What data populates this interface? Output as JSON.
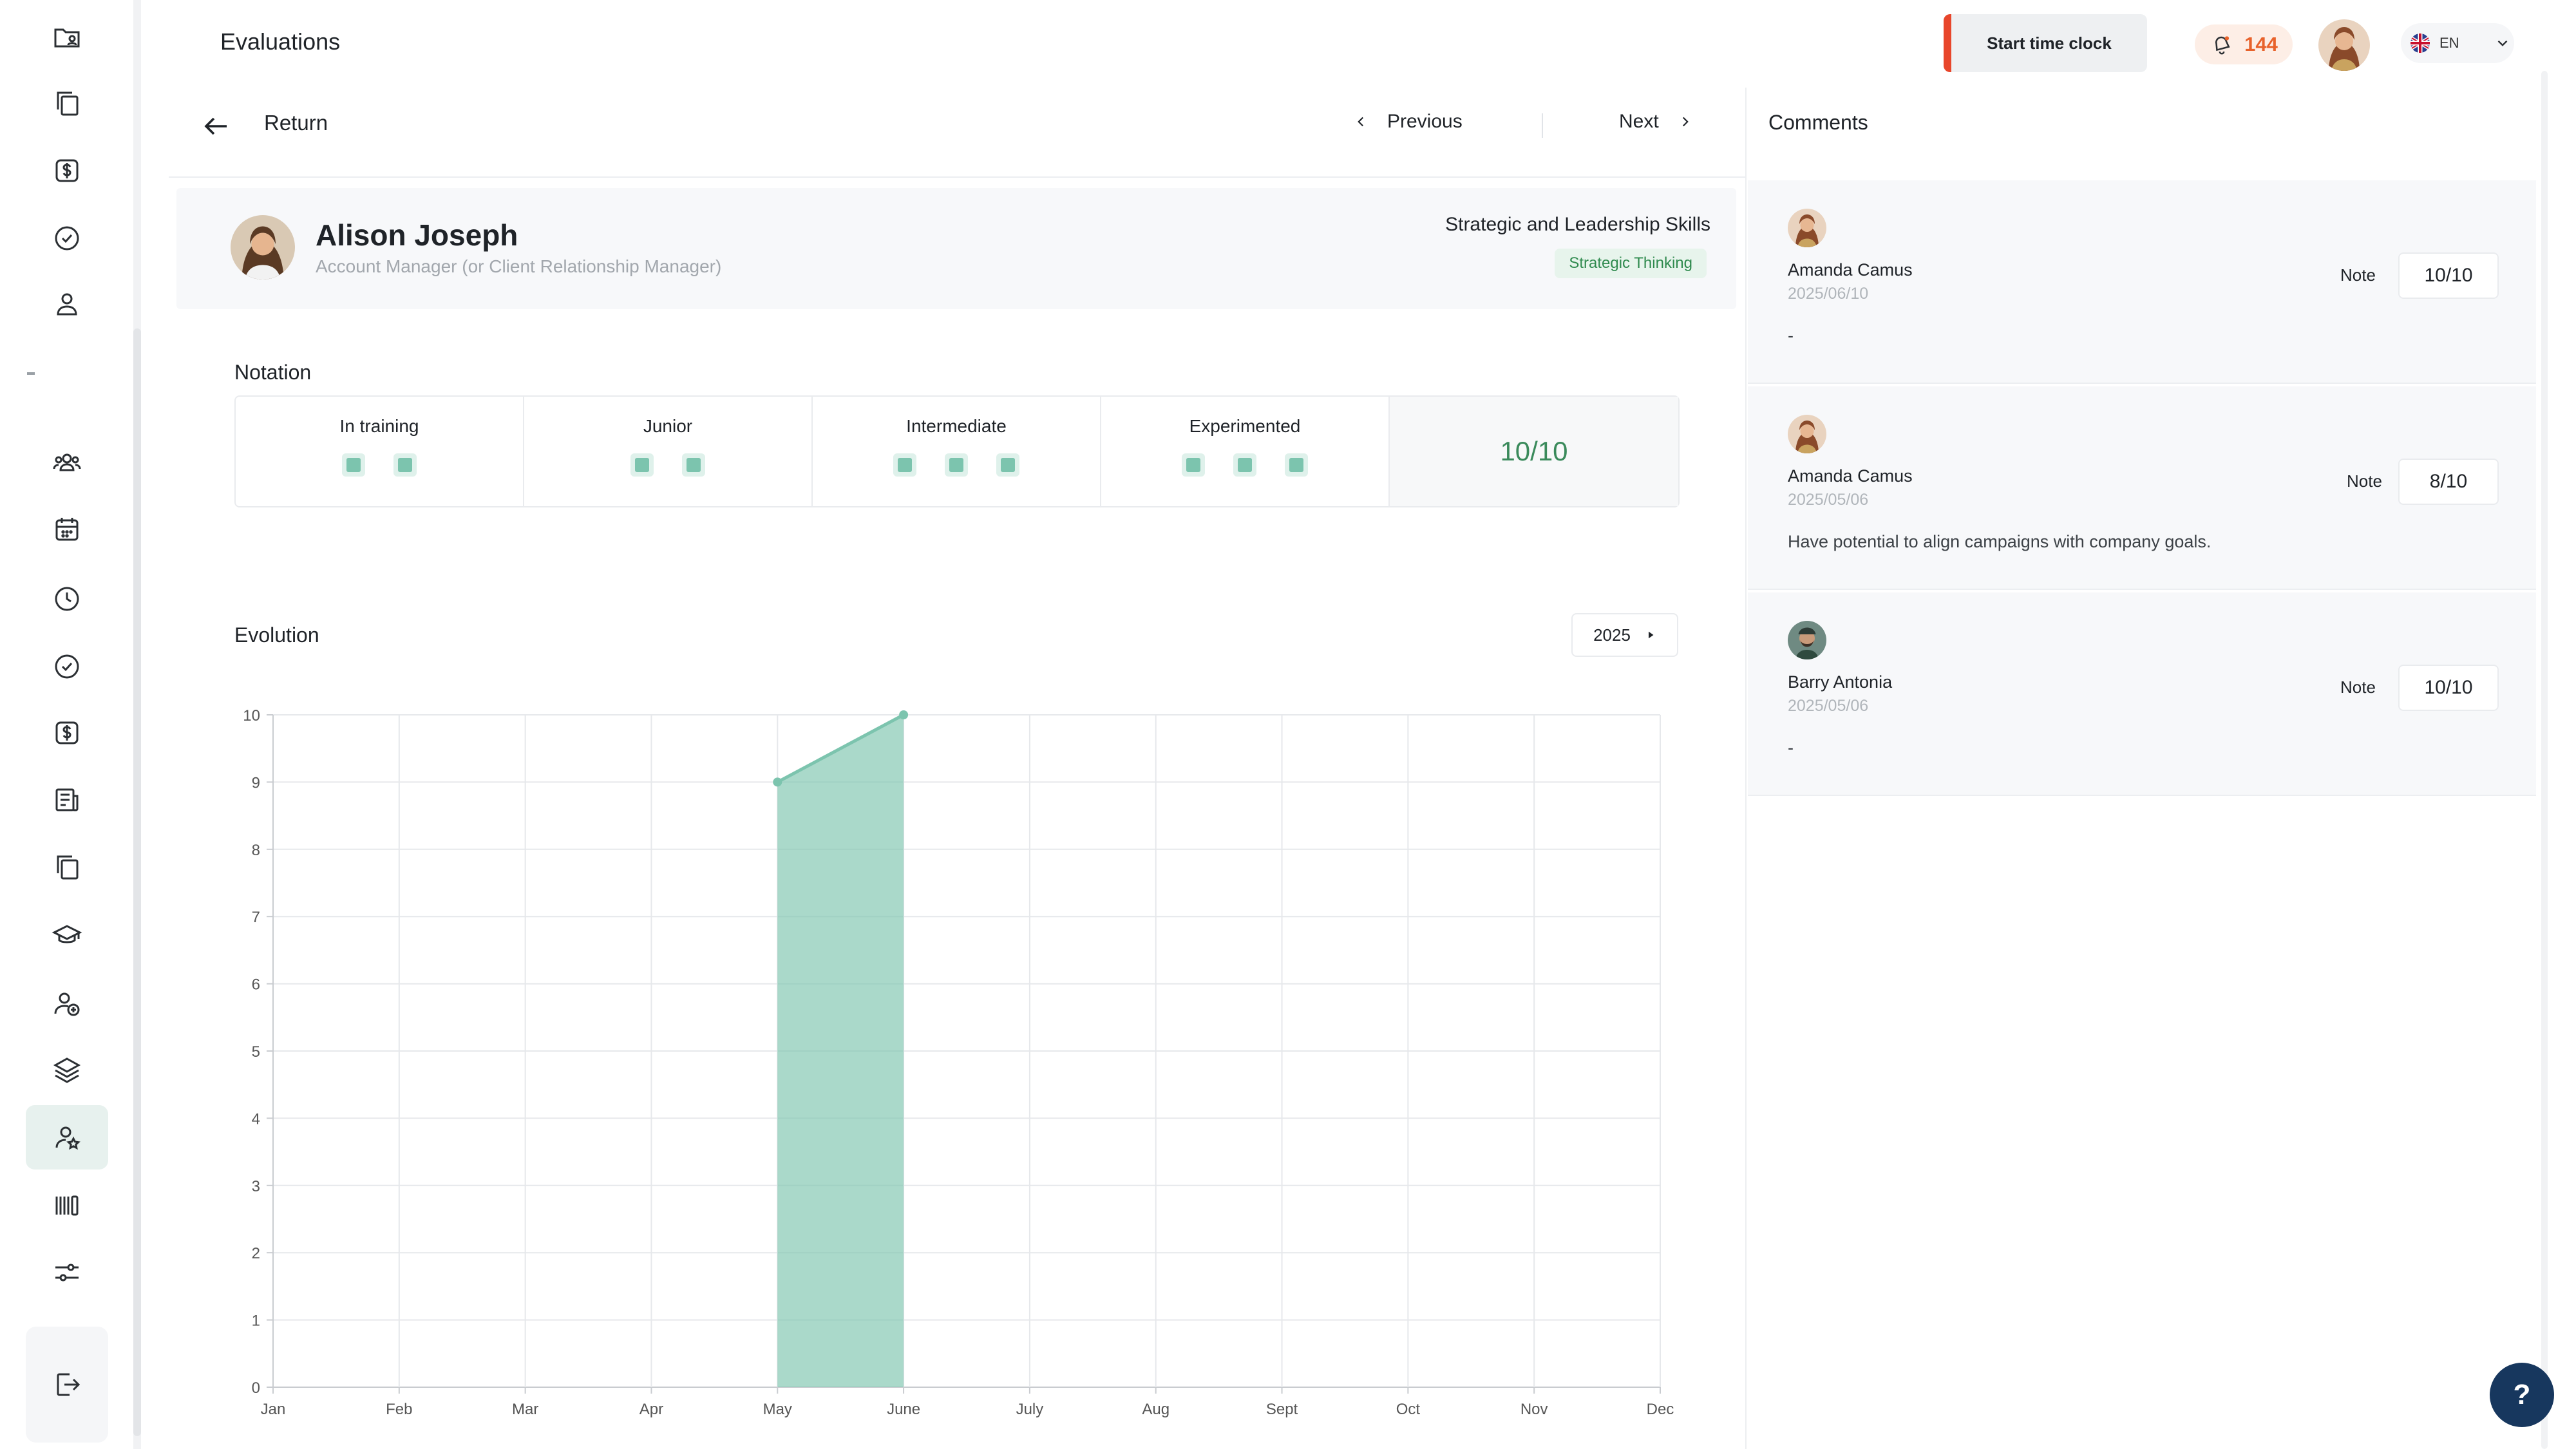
{
  "header": {
    "title": "Evaluations",
    "clock_button": "Start time clock",
    "notifications_count": "144",
    "language": "EN"
  },
  "sidebar": {
    "items": [
      {
        "icon": "folder-user-icon"
      },
      {
        "icon": "documents-icon"
      },
      {
        "icon": "dollar-icon"
      },
      {
        "icon": "check-circle-icon"
      },
      {
        "icon": "user-icon"
      },
      {
        "icon": "users-icon"
      },
      {
        "icon": "calendar-icon"
      },
      {
        "icon": "clock-icon"
      },
      {
        "icon": "check-circle-icon"
      },
      {
        "icon": "dollar-icon"
      },
      {
        "icon": "report-icon"
      },
      {
        "icon": "documents-icon"
      },
      {
        "icon": "graduation-cap-icon"
      },
      {
        "icon": "user-add-icon"
      },
      {
        "icon": "layers-icon"
      },
      {
        "icon": "user-star-icon",
        "active": true
      },
      {
        "icon": "barcode-icon"
      },
      {
        "icon": "sliders-icon"
      }
    ],
    "logout_icon": "logout-icon"
  },
  "nav": {
    "return": "Return",
    "previous": "Previous",
    "next": "Next"
  },
  "profile": {
    "name": "Alison Joseph",
    "role": "Account Manager (or Client Relationship Manager)",
    "skill_category": "Strategic and Leadership Skills",
    "skill": "Strategic Thinking"
  },
  "notation": {
    "label": "Notation",
    "levels": [
      {
        "name": "In training",
        "squares": 2
      },
      {
        "name": "Junior",
        "squares": 2
      },
      {
        "name": "Intermediate",
        "squares": 3
      },
      {
        "name": "Experimented",
        "squares": 3
      }
    ],
    "score": "10/10"
  },
  "evolution": {
    "label": "Evolution",
    "year": "2025"
  },
  "chart_data": {
    "type": "area",
    "categories": [
      "Jan",
      "Feb",
      "Mar",
      "Apr",
      "May",
      "June",
      "July",
      "Aug",
      "Sept",
      "Oct",
      "Nov",
      "Dec"
    ],
    "series": [
      {
        "values": [
          null,
          null,
          null,
          null,
          9,
          10,
          null,
          null,
          null,
          null,
          null,
          null
        ],
        "color": "#7cc4ae"
      }
    ],
    "yticks": [
      "0",
      "1",
      "2",
      "3",
      "4",
      "5",
      "6",
      "7",
      "8",
      "9",
      "10"
    ],
    "ylim": [
      0,
      10
    ],
    "grid": true
  },
  "comments": {
    "title": "Comments",
    "note_label": "Note",
    "items": [
      {
        "author": "Amanda Camus",
        "date": "2025/06/10",
        "text": "-",
        "note": "10/10"
      },
      {
        "author": "Amanda Camus",
        "date": "2025/05/06",
        "text": "Have potential to align campaigns with company goals.",
        "note": "8/10"
      },
      {
        "author": "Barry Antonia",
        "date": "2025/05/06",
        "text": "-",
        "note": "10/10"
      }
    ]
  },
  "help": "?"
}
